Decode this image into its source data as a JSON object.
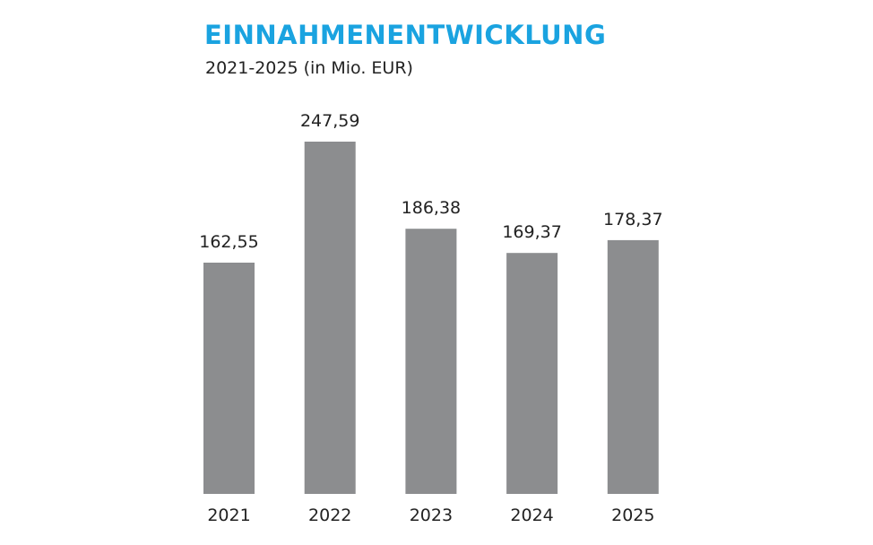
{
  "colors": {
    "title": "#1aa3e0",
    "text": "#222222",
    "bar": "#8c8d8f",
    "background": "#ffffff"
  },
  "chart_data": {
    "type": "bar",
    "title": "EINNAHMENENTWICKLUNG",
    "subtitle": "2021-2025 (in Mio. EUR)",
    "xlabel": "",
    "ylabel": "",
    "grid": false,
    "legend": "none",
    "ylim": [
      0,
      247.59
    ],
    "categories": [
      "2021",
      "2022",
      "2023",
      "2024",
      "2025"
    ],
    "values": [
      162.55,
      247.59,
      186.38,
      169.37,
      178.37
    ],
    "value_labels": [
      "162,55",
      "247,59",
      "186,38",
      "169,37",
      "178,37"
    ]
  }
}
